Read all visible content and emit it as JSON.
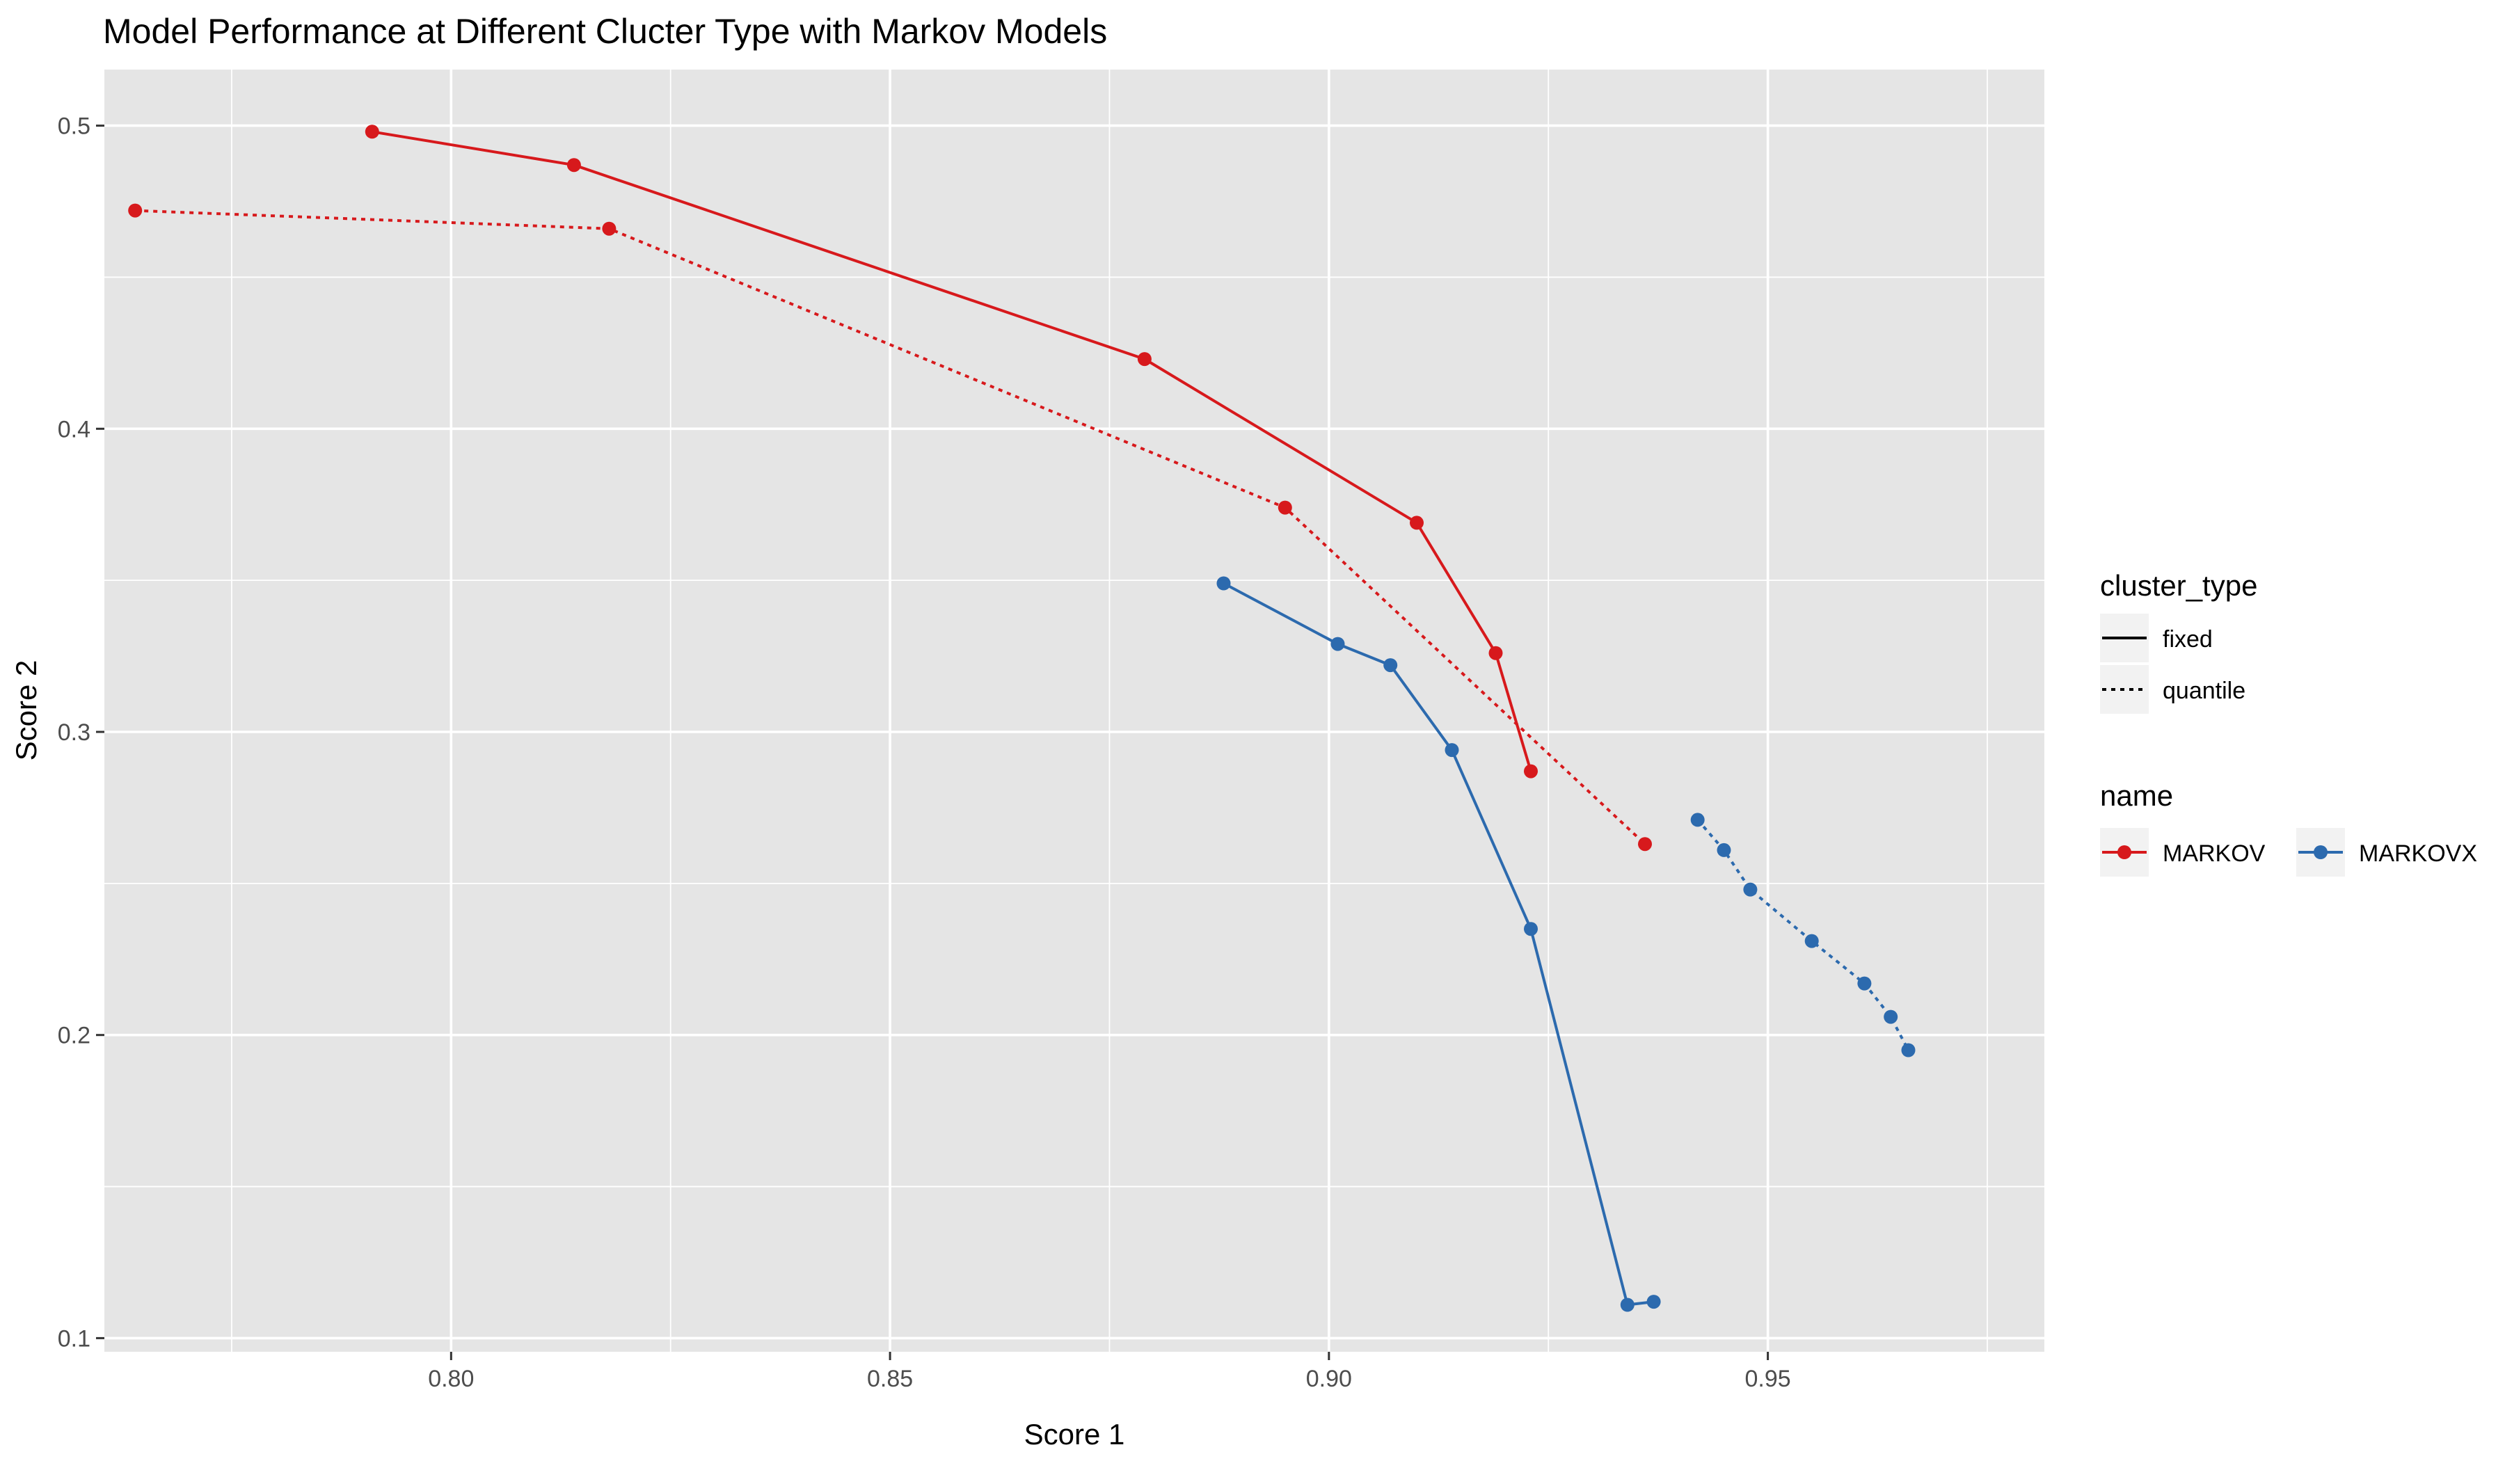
{
  "chart_data": {
    "type": "line",
    "title": "Model Performance at Different Clucter Type with Markov Models",
    "xlabel": "Score 1",
    "ylabel": "Score 2",
    "xlim": [
      0.7605,
      0.9815
    ],
    "ylim": [
      0.0955,
      0.5185
    ],
    "x_ticks": [
      0.8,
      0.85,
      0.9,
      0.95
    ],
    "x_tick_labels": [
      "0.80",
      "0.85",
      "0.90",
      "0.95"
    ],
    "y_ticks": [
      0.1,
      0.2,
      0.3,
      0.4,
      0.5
    ],
    "y_tick_labels": [
      "0.1",
      "0.2",
      "0.3",
      "0.4",
      "0.5"
    ],
    "grid": true,
    "legend_placement": "right",
    "legends": {
      "cluster_type": {
        "title": "cluster_type",
        "entries": [
          "fixed",
          "quantile"
        ]
      },
      "name": {
        "title": "name",
        "entries": [
          "MARKOV",
          "MARKOVX"
        ]
      }
    },
    "colors": {
      "MARKOV": "#D7191C",
      "MARKOVX": "#2C6AAE",
      "panel": "#E5E5E5",
      "grid": "#FFFFFF"
    },
    "series": [
      {
        "name": "MARKOV",
        "cluster_type": "fixed",
        "linestyle": "solid",
        "x": [
          0.791,
          0.814,
          0.879,
          0.91,
          0.919,
          0.923
        ],
        "y": [
          0.498,
          0.487,
          0.423,
          0.369,
          0.326,
          0.287
        ]
      },
      {
        "name": "MARKOV",
        "cluster_type": "quantile",
        "linestyle": "dotted",
        "x": [
          0.764,
          0.818,
          0.895,
          0.936
        ],
        "y": [
          0.472,
          0.466,
          0.374,
          0.263
        ]
      },
      {
        "name": "MARKOVX",
        "cluster_type": "fixed",
        "linestyle": "solid",
        "x": [
          0.888,
          0.901,
          0.907,
          0.914,
          0.923,
          0.934,
          0.937
        ],
        "y": [
          0.349,
          0.329,
          0.322,
          0.294,
          0.235,
          0.111,
          0.112
        ]
      },
      {
        "name": "MARKOVX",
        "cluster_type": "quantile",
        "linestyle": "dotted",
        "x": [
          0.942,
          0.945,
          0.948,
          0.955,
          0.961,
          0.964,
          0.966
        ],
        "y": [
          0.271,
          0.261,
          0.248,
          0.231,
          0.217,
          0.206,
          0.195
        ]
      }
    ]
  }
}
